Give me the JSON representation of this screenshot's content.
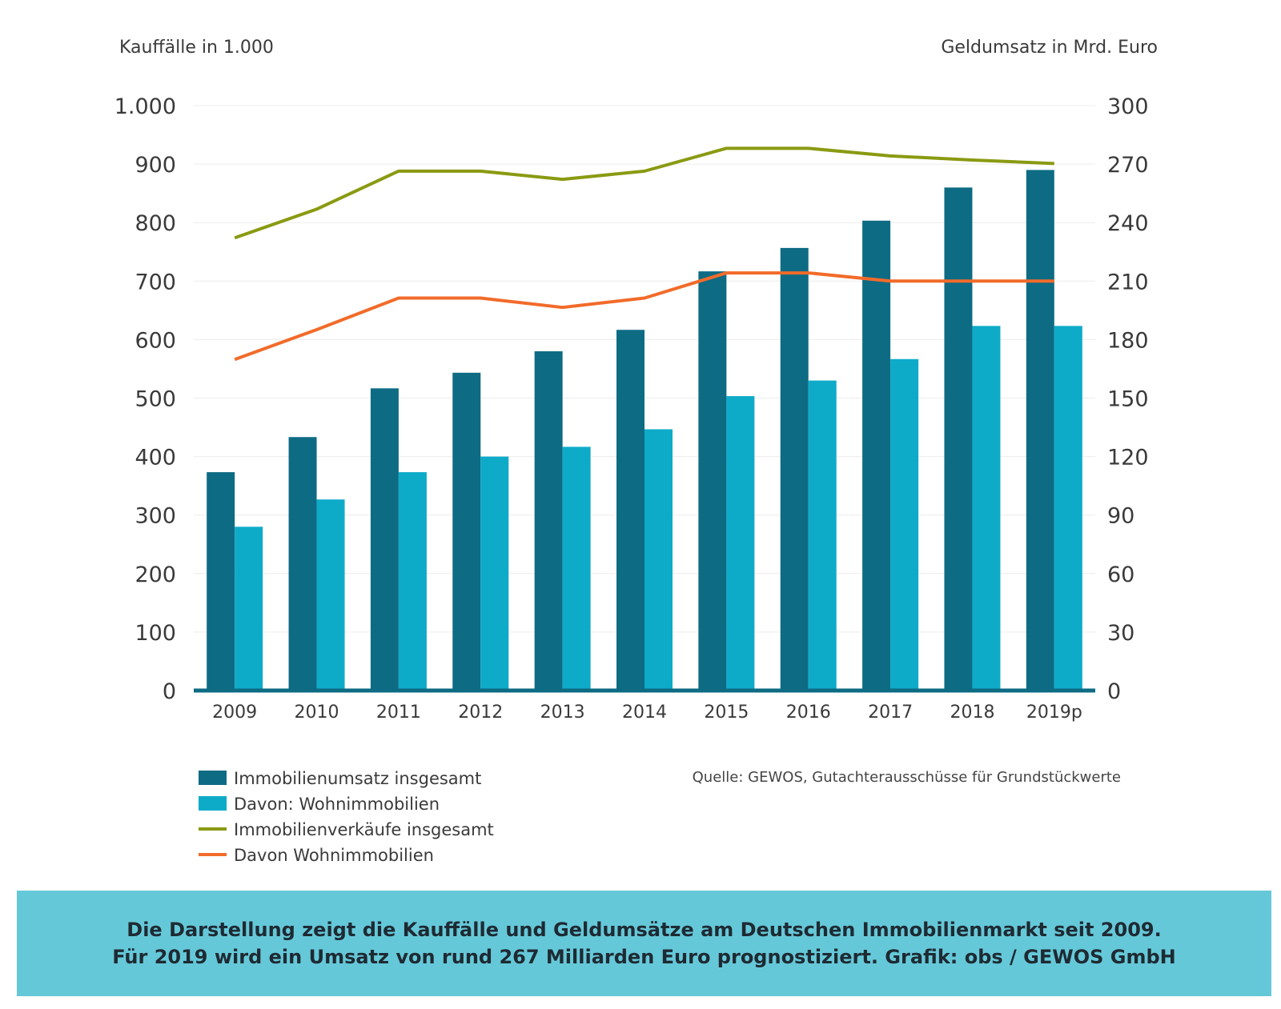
{
  "chart_data": {
    "type": "bar",
    "categories": [
      "2009",
      "2010",
      "2011",
      "2012",
      "2013",
      "2014",
      "2015",
      "2016",
      "2017",
      "2018",
      "2019p"
    ],
    "left_axis": {
      "title": "Kauffälle in 1.000",
      "ticks": [
        "0",
        "100",
        "200",
        "300",
        "400",
        "500",
        "600",
        "700",
        "800",
        "900",
        "1.000"
      ],
      "tick_values": [
        0,
        100,
        200,
        300,
        400,
        500,
        600,
        700,
        800,
        900,
        1000
      ],
      "range": [
        0,
        1000
      ]
    },
    "right_axis": {
      "title": "Geldumsatz in Mrd. Euro",
      "ticks": [
        "0",
        "30",
        "60",
        "90",
        "120",
        "150",
        "180",
        "210",
        "240",
        "270",
        "300"
      ],
      "tick_values": [
        0,
        30,
        60,
        90,
        120,
        150,
        180,
        210,
        240,
        270,
        300
      ],
      "range": [
        0,
        300
      ]
    },
    "series": [
      {
        "name": "Immobilienumsatz insgesamt",
        "kind": "bar",
        "axis": "right",
        "color": "#0e6b84",
        "values": [
          112,
          130,
          155,
          163,
          174,
          185,
          215,
          227,
          241,
          258,
          267
        ]
      },
      {
        "name": "Davon: Wohnimmobilien",
        "kind": "bar",
        "axis": "right",
        "color": "#0eabc9",
        "values": [
          84,
          98,
          112,
          120,
          125,
          134,
          151,
          159,
          170,
          187,
          187
        ]
      },
      {
        "name": "Immobilienverkäufe insgesamt",
        "kind": "line",
        "axis": "left",
        "color": "#8a9a12",
        "values": [
          774,
          823,
          888,
          888,
          874,
          888,
          927,
          927,
          914,
          907,
          901
        ]
      },
      {
        "name": "Davon Wohnimmobilien",
        "kind": "line",
        "axis": "left",
        "color": "#f26b2a",
        "values": [
          566,
          617,
          671,
          671,
          655,
          671,
          714,
          714,
          700,
          700,
          700
        ]
      }
    ],
    "grid": true,
    "legend_position": "bottom-left",
    "source": "Quelle: GEWOS, Gutachterausschüsse für Grundstückwerte"
  },
  "caption": {
    "line1": "Die Darstellung zeigt die Kauffälle und Geldumsätze am Deutschen Immobilienmarkt seit 2009.",
    "line2": "Für 2019 wird ein Umsatz von rund 267 Milliarden Euro prognostiziert. Grafik: obs / GEWOS GmbH"
  }
}
